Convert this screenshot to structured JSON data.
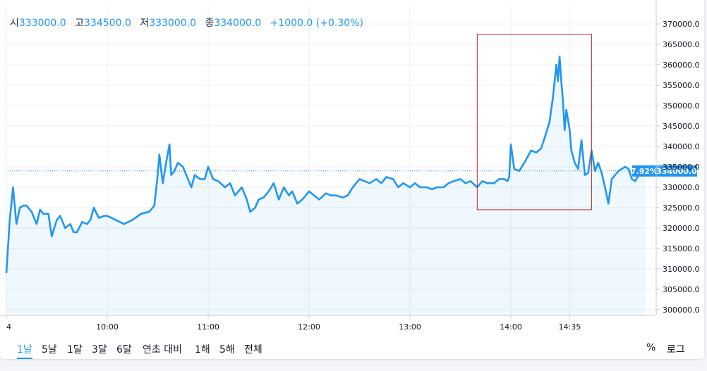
{
  "legend": {
    "open_label": "시",
    "open_value": "333000.0",
    "high_label": "고",
    "high_value": "334500.0",
    "low_label": "저",
    "low_value": "333000.0",
    "close_label": "종",
    "close_value": "334000.0",
    "change": "+1000.0 (+0.30%)"
  },
  "price_tag": {
    "percent": "7.92%",
    "price": "334000.0"
  },
  "toolbar": {
    "ranges": [
      "1날",
      "5날",
      "1달",
      "3달",
      "6달",
      "연초 대비",
      "1해",
      "5해",
      "전체"
    ],
    "active_range": "1날",
    "percent_label": "%",
    "log_label": "로그"
  },
  "colors": {
    "line": "#2196f3",
    "highlight_box": "#c62828",
    "grid": "#eceff4"
  },
  "chart_data": {
    "type": "area",
    "title": "",
    "xlabel": "",
    "ylabel": "",
    "y_ticks": [
      300000,
      305000,
      310000,
      315000,
      320000,
      325000,
      330000,
      335000,
      340000,
      345000,
      350000,
      355000,
      360000,
      365000,
      370000
    ],
    "y_tick_labels": [
      "300000.0",
      "305000.0",
      "310000.0",
      "315000.0",
      "320000.0",
      "325000.0",
      "330000.0",
      "335000.0",
      "340000.0",
      "345000.0",
      "350000.0",
      "355000.0",
      "360000.0",
      "365000.0",
      "370000.0"
    ],
    "ylim": [
      298000,
      372000
    ],
    "xlim": [
      "09:00",
      "15:30"
    ],
    "x_ticks": [
      "09:00",
      "10:00",
      "11:00",
      "12:00",
      "13:00",
      "14:00",
      "14:35"
    ],
    "x_tick_labels": [
      "4",
      "10:00",
      "11:00",
      "12:00",
      "13:00",
      "14:00",
      "14:35"
    ],
    "last_value": 334000,
    "highlight_region": {
      "x_start": "13:40",
      "x_end": "14:48",
      "y_start": 324500,
      "y_end": 367500
    },
    "grid": true,
    "series": [
      {
        "x": [
          "09:00",
          "09:02",
          "09:04",
          "09:06",
          "09:08",
          "09:10",
          "09:12",
          "09:15",
          "09:18",
          "09:20",
          "09:22",
          "09:25",
          "09:27",
          "09:30",
          "09:32",
          "09:35",
          "09:38",
          "09:40",
          "09:42",
          "09:45",
          "09:48",
          "09:50",
          "09:52",
          "09:55",
          "09:58",
          "10:00",
          "10:05",
          "10:10",
          "10:15",
          "10:20",
          "10:25",
          "10:28",
          "10:30",
          "10:31",
          "10:33",
          "10:35",
          "10:37",
          "10:38",
          "10:40",
          "10:42",
          "10:45",
          "10:48",
          "10:50",
          "10:52",
          "10:55",
          "10:58",
          "11:00",
          "11:03",
          "11:06",
          "11:10",
          "11:13",
          "11:16",
          "11:20",
          "11:23",
          "11:25",
          "11:28",
          "11:30",
          "11:33",
          "11:36",
          "11:39",
          "11:42",
          "11:45",
          "11:48",
          "11:50",
          "11:53",
          "11:56",
          "12:00",
          "12:03",
          "12:06",
          "12:10",
          "12:13",
          "12:16",
          "12:20",
          "12:23",
          "12:26",
          "12:30",
          "12:33",
          "12:36",
          "12:40",
          "12:43",
          "12:46",
          "12:50",
          "12:53",
          "12:56",
          "13:00",
          "13:03",
          "13:06",
          "13:10",
          "13:13",
          "13:16",
          "13:20",
          "13:23",
          "13:26",
          "13:30",
          "13:33",
          "13:36",
          "13:40",
          "13:43",
          "13:46",
          "13:50",
          "13:53",
          "13:56",
          "13:58",
          "13:59",
          "14:00",
          "14:02",
          "14:05",
          "14:08",
          "14:12",
          "14:15",
          "14:18",
          "14:20",
          "14:23",
          "14:25",
          "14:27",
          "14:28",
          "14:29",
          "14:30",
          "14:31",
          "14:32",
          "14:33",
          "14:35",
          "14:36",
          "14:38",
          "14:40",
          "14:42",
          "14:44",
          "14:46",
          "14:48",
          "14:50",
          "14:52",
          "14:54",
          "14:56",
          "14:58",
          "15:00",
          "15:02",
          "15:04",
          "15:06",
          "15:08",
          "15:10",
          "15:12",
          "15:14",
          "15:16",
          "15:18",
          "15:20"
        ],
        "y": [
          309000,
          322000,
          330000,
          321000,
          325000,
          325500,
          325500,
          324000,
          321000,
          324500,
          323500,
          323500,
          318000,
          322000,
          323000,
          320000,
          321000,
          319000,
          319000,
          321500,
          321000,
          322000,
          325000,
          322500,
          323000,
          323000,
          322000,
          321000,
          322000,
          323500,
          324000,
          325500,
          333000,
          338000,
          331000,
          336000,
          340500,
          333000,
          334000,
          336000,
          335000,
          332000,
          330000,
          333000,
          332000,
          332000,
          335000,
          332000,
          331500,
          330000,
          331000,
          328000,
          330000,
          327000,
          324000,
          325000,
          327000,
          327500,
          329000,
          331000,
          327000,
          330000,
          328000,
          329000,
          326000,
          327000,
          329000,
          328000,
          327000,
          328500,
          328000,
          328000,
          327500,
          328000,
          330000,
          332000,
          331500,
          331000,
          332000,
          331000,
          332500,
          332000,
          330000,
          331000,
          330000,
          331000,
          330000,
          330000,
          329500,
          330000,
          330000,
          331000,
          331500,
          332000,
          331000,
          331500,
          330000,
          331500,
          331000,
          331000,
          332000,
          332000,
          331500,
          332500,
          340500,
          334500,
          334000,
          336000,
          339000,
          338500,
          339500,
          342000,
          346000,
          352000,
          360000,
          356000,
          362000,
          356000,
          351000,
          344000,
          349000,
          344000,
          339000,
          336000,
          334500,
          341500,
          333000,
          333500,
          339000,
          334000,
          336000,
          333500,
          330000,
          326000,
          332000,
          333000,
          334000,
          334500,
          335000,
          334500,
          332000,
          331500,
          333000,
          333500,
          334000
        ]
      }
    ]
  }
}
